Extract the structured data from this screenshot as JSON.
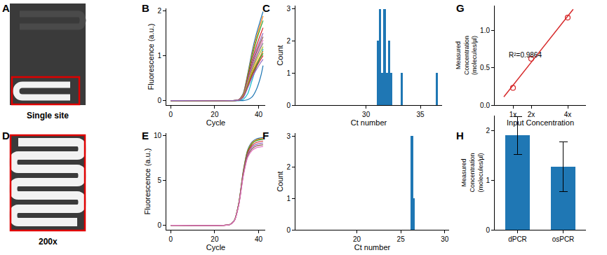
{
  "chart_data": [
    {
      "panel": "A",
      "type": "image",
      "caption": "Single site"
    },
    {
      "panel": "B",
      "type": "line",
      "x_label": "Cycle",
      "y_label": "Fluorescence (a.u.)",
      "x": [
        0,
        28,
        31,
        33,
        35,
        37,
        39,
        41,
        42
      ],
      "series": [
        {
          "color": "#1f77b4",
          "values": [
            0,
            0,
            0.02,
            0.16,
            0.59,
            1.09,
            1.49,
            1.82,
            1.98
          ]
        },
        {
          "color": "#ff7f0e",
          "values": [
            0,
            0,
            0.02,
            0.15,
            0.56,
            1.03,
            1.41,
            1.73,
            1.88
          ]
        },
        {
          "color": "#2ca02c",
          "values": [
            0,
            0,
            0.02,
            0.14,
            0.53,
            0.98,
            1.34,
            1.64,
            1.78
          ]
        },
        {
          "color": "#d62728",
          "values": [
            0,
            0,
            0.02,
            0.13,
            0.49,
            0.89,
            1.22,
            1.49,
            1.62
          ]
        },
        {
          "color": "#9467bd",
          "values": [
            0,
            0,
            0.02,
            0.12,
            0.45,
            0.83,
            1.13,
            1.38,
            1.5
          ]
        },
        {
          "color": "#8c564b",
          "values": [
            0,
            0,
            0.01,
            0.11,
            0.43,
            0.78,
            1.07,
            1.31,
            1.42
          ]
        },
        {
          "color": "#e377c2",
          "values": [
            0,
            0,
            0.01,
            0.11,
            0.41,
            0.74,
            1.01,
            1.24,
            1.35
          ]
        },
        {
          "color": "#7f7f7f",
          "values": [
            0,
            0,
            0.01,
            0.1,
            0.38,
            0.7,
            0.96,
            1.18,
            1.28
          ]
        },
        {
          "color": "#bcbd22",
          "values": [
            0,
            0,
            0.01,
            0.1,
            0.36,
            0.66,
            0.9,
            1.1,
            1.2
          ]
        },
        {
          "color": "#17becf",
          "values": [
            0,
            0,
            0,
            0.03,
            0.15,
            0.45,
            0.75,
            1.0,
            1.15
          ]
        },
        {
          "color": "#1f77b4",
          "values": [
            0,
            0,
            0,
            0,
            0.02,
            0.08,
            0.25,
            0.55,
            0.78
          ]
        },
        {
          "color": "#ff7f0e",
          "values": [
            0,
            0,
            0.01,
            0.09,
            0.33,
            0.61,
            0.83,
            1.01,
            1.1
          ]
        },
        {
          "color": "#2ca02c",
          "values": [
            0,
            0,
            0.01,
            0.08,
            0.32,
            0.58,
            0.79,
            0.97,
            1.05
          ]
        },
        {
          "color": "#d62728",
          "values": [
            0,
            0,
            0.01,
            0.08,
            0.3,
            0.55,
            0.75,
            0.92,
            1.0
          ]
        },
        {
          "color": "#9467bd",
          "values": [
            0,
            0,
            0.01,
            0.07,
            0.28,
            0.51,
            0.69,
            0.85,
            0.92
          ]
        }
      ],
      "xlim": [
        -2,
        43
      ],
      "xticks": [
        0,
        20,
        40
      ],
      "ylim": [
        -0.1,
        2.05
      ],
      "yticks": [
        0,
        1,
        2
      ]
    },
    {
      "panel": "C",
      "type": "histogram",
      "x_label": "Ct number",
      "y_label": "Count",
      "bins": [
        31.0,
        31.2,
        31.4,
        31.6,
        31.8,
        32.0,
        32.2,
        32.4,
        32.6,
        32.8,
        33.0,
        33.2,
        33.4,
        33.6,
        33.8,
        34.0,
        34.2,
        34.4,
        34.6,
        34.8,
        35.0,
        35.2,
        35.4,
        35.6,
        35.8,
        36.0,
        36.2,
        36.4,
        36.6
      ],
      "values": [
        2,
        3,
        1,
        3,
        1,
        2,
        1,
        0,
        0,
        0,
        0,
        1,
        0,
        0,
        0,
        0,
        0,
        0,
        0,
        0,
        0,
        0,
        0,
        0,
        0,
        0,
        0,
        1
      ],
      "color": "#1f77b4",
      "xlim": [
        23.5,
        37
      ],
      "xticks": [
        30,
        35
      ],
      "ylim": [
        0,
        3.1
      ],
      "yticks": [
        0,
        1,
        2,
        3
      ]
    },
    {
      "panel": "G",
      "type": "scatter",
      "x_label": "Input Concentration",
      "y_label": "Measured Concentration (molecules/µl)",
      "x": [
        1,
        2,
        4
      ],
      "values": [
        0.23,
        0.62,
        1.17
      ],
      "fit": {
        "x": [
          0.5,
          4.3
        ],
        "values": [
          0.11,
          1.28
        ]
      },
      "color": "#d62728",
      "marker": "open circle",
      "annotations": [
        "R²=0.9864"
      ],
      "xlim": [
        0,
        5
      ],
      "xticks": [
        {
          "value": 1,
          "label": "1x"
        },
        {
          "value": 2,
          "label": "2x"
        },
        {
          "value": 4,
          "label": "4x"
        }
      ],
      "ylim": [
        0,
        1.33
      ],
      "yticks": [
        {
          "value": 0,
          "label": "0.0"
        },
        {
          "value": 0.5,
          "label": "0.5"
        },
        {
          "value": 1,
          "label": "1.0"
        }
      ]
    },
    {
      "panel": "D",
      "type": "image",
      "caption": "200x"
    },
    {
      "panel": "E",
      "type": "line",
      "x_label": "Cycle",
      "y_label": "Fluorescence (a.u.)",
      "x": [
        0,
        24,
        27,
        29,
        31,
        33,
        35,
        37,
        39,
        42
      ],
      "series": [
        {
          "color": "#1f77b4",
          "values": [
            0,
            0,
            0.1,
            0.59,
            2.55,
            6.08,
            8.43,
            9.31,
            9.65,
            9.8
          ]
        },
        {
          "color": "#ff7f0e",
          "values": [
            0,
            0,
            0.1,
            0.58,
            2.52,
            6.01,
            8.34,
            9.22,
            9.55,
            9.7
          ]
        },
        {
          "color": "#2ca02c",
          "values": [
            0,
            0,
            0.1,
            0.58,
            2.5,
            5.95,
            8.26,
            9.12,
            9.46,
            9.6
          ]
        },
        {
          "color": "#d62728",
          "values": [
            0,
            0,
            0.09,
            0.56,
            2.44,
            5.83,
            8.08,
            8.93,
            9.26,
            9.4
          ]
        },
        {
          "color": "#9467bd",
          "values": [
            0,
            0,
            0.09,
            0.55,
            2.39,
            5.7,
            7.91,
            8.74,
            9.06,
            9.2
          ]
        },
        {
          "color": "#8c564b",
          "values": [
            0,
            0,
            0.09,
            0.54,
            2.34,
            5.58,
            7.74,
            8.55,
            8.87,
            9.0
          ]
        },
        {
          "color": "#e377c2",
          "values": [
            0,
            0,
            0.09,
            0.53,
            2.29,
            5.46,
            7.57,
            8.36,
            8.67,
            8.8
          ]
        }
      ],
      "xlim": [
        -2,
        43
      ],
      "xticks": [
        0,
        20,
        40
      ],
      "ylim": [
        -0.5,
        10.3
      ],
      "yticks": [
        0,
        5,
        10
      ]
    },
    {
      "panel": "F",
      "type": "histogram",
      "x_label": "Ct number",
      "y_label": "Count",
      "bins": [
        26.1,
        26.25,
        26.4,
        26.55
      ],
      "values": [
        3,
        3,
        1
      ],
      "color": "#1f77b4",
      "xlim": [
        13,
        30.5
      ],
      "xticks": [
        20,
        25,
        30
      ],
      "ylim": [
        0,
        3.1
      ],
      "yticks": [
        0,
        1,
        2,
        3
      ]
    },
    {
      "panel": "H",
      "type": "bar",
      "y_label": "Measured Concentration (molecules/µl)",
      "categories": [
        "dPCR",
        "osPCR"
      ],
      "values": [
        1.9,
        1.27
      ],
      "errors": [
        0.38,
        0.5
      ],
      "color": "#1f77b4",
      "ylim": [
        0,
        2.3
      ],
      "yticks": [
        0,
        1,
        2
      ]
    }
  ]
}
